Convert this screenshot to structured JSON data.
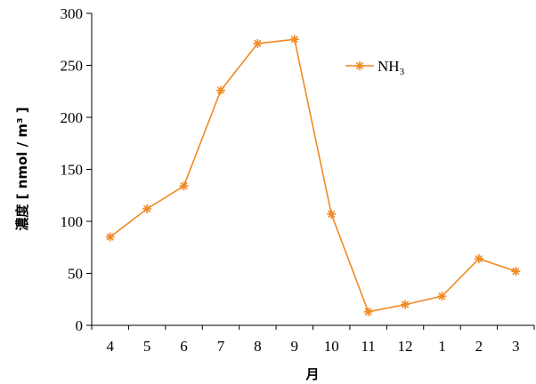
{
  "chart_data": {
    "type": "line",
    "title": "",
    "xlabel": "月",
    "ylabel": "濃度 [ nmol / m³ ]",
    "ylim": [
      0,
      300
    ],
    "yticks": [
      0,
      50,
      100,
      150,
      200,
      250,
      300
    ],
    "categories": [
      "4",
      "5",
      "6",
      "7",
      "8",
      "9",
      "10",
      "11",
      "12",
      "1",
      "2",
      "3"
    ],
    "grid": false,
    "legend_position": "top-right",
    "series": [
      {
        "name": "NH3",
        "name_base": "NH",
        "name_sub": "3",
        "color": "#f08a24",
        "marker": "asterisk",
        "values": [
          85,
          112,
          134,
          226,
          271,
          275,
          107,
          13,
          20,
          28,
          64,
          52
        ]
      }
    ]
  }
}
